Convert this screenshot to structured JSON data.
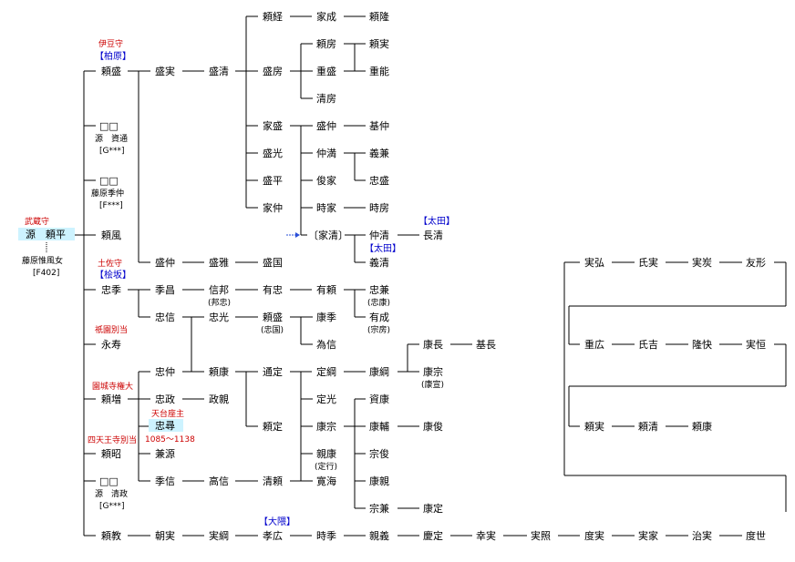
{
  "root": {
    "name": "源　頼平",
    "title": "武蔵守",
    "wife": "藤原惟風女",
    "wife_ref": "[F402]"
  },
  "gen1": [
    {
      "key": "yorimori",
      "name": "頼盛",
      "title": "伊豆守",
      "house": "【柏原】"
    },
    {
      "key": "unk1",
      "name": "□□",
      "sub": "源　資通",
      "ref": "[G***]"
    },
    {
      "key": "unk2",
      "name": "□□",
      "sub": "藤原季仲",
      "ref": "[F***]"
    },
    {
      "key": "yorikaze",
      "name": "頼風"
    },
    {
      "key": "tadasue",
      "name": "忠季",
      "title": "土佐守",
      "house": "【桧坂】"
    },
    {
      "key": "eiju",
      "name": "永寿",
      "title": "祇園別当"
    },
    {
      "key": "raizo",
      "name": "頼増",
      "title": "園城寺権大"
    },
    {
      "key": "raisho",
      "name": "頼昭",
      "title": "四天王寺別当"
    },
    {
      "key": "unk3",
      "name": "□□",
      "sub": "源　清政",
      "ref": "[G***]"
    },
    {
      "key": "yorinori",
      "name": "頼教"
    }
  ],
  "nodes": {
    "morizane": "盛実",
    "morikiyo": "盛清",
    "yoritsune": "頼経",
    "ienari": "家成",
    "yoritaka": "頼隆",
    "yorifusa": "頼房",
    "yorizane": "頼実",
    "morifusa": "盛房",
    "shigemori": "重盛",
    "shigeyoshi": "重能",
    "kiyofusa": "清房",
    "iemori": "家盛",
    "morinaka": "盛仲",
    "motonaka": "基仲",
    "morimitsu": "盛光",
    "nakamitsu": "仲満",
    "yoshikane": "義兼",
    "morihira": "盛平",
    "toshiie": "俊家",
    "tadamori": "忠盛",
    "ienaka": "家仲",
    "tokiie": "時家",
    "tokifusa": "時房",
    "ieki": "〔家清〕",
    "nakakiyo": "仲清",
    "nagakiyo": "長清",
    "yoshikiyo": "義清",
    "morinaka2": "盛仲",
    "morimasa": "盛雅",
    "morikuni": "盛国",
    "suemasa": "季昌",
    "nobukuni": "信邦",
    "aritada": "有忠",
    "ariyori": "有頼",
    "tadakane": "忠兼",
    "tadanobu": "忠信",
    "tadamitsu": "忠光",
    "yorimori2": "頼盛",
    "yasusue": "康季",
    "arinari": "有成",
    "tamenobu": "為信",
    "yasunaga": "康長",
    "motonaga": "基長",
    "tadanaka": "忠仲",
    "yoriyasu": "頼康",
    "michisada": "通定",
    "sadatsuna": "定綱",
    "yasutsuna": "康綱",
    "yasumune": "康宗",
    "sadamitsu": "定光",
    "suketaka": "資康",
    "tadamasa": "忠政",
    "masachika": "政親",
    "yorisada": "頼定",
    "yasumune2": "康宗",
    "yasusuke": "康輔",
    "yasutoshi": "康俊",
    "tadahiro": "忠尋",
    "kanemoto": "兼源",
    "chikayasu": "親康",
    "munetoshi": "宗俊",
    "suenobu": "季信",
    "takanobu": "高信",
    "kiyoyori": "清頼",
    "kankai": "寛海",
    "yasuchika": "康親",
    "munekane": "宗兼",
    "yasusada": "康定",
    "tomozane": "朝実",
    "sanetsuna": "実綱",
    "takahiro": "孝広",
    "tokisue": "時季",
    "chikayoshi": "親義",
    "yoshisada": "慶定",
    "yukizane": "幸実",
    "saneteru": "実照",
    "nobuzane": "度実",
    "saneie": "実家",
    "harumasa": "治実",
    "noriyo": "度世",
    "sanehiro": "実弘",
    "ujizane": "氏実",
    "sanetada": "実炭",
    "tomokata": "友形",
    "shigehiro": "重広",
    "ujiyoshi": "氏吉",
    "takayasu": "隆快",
    "sanetsune": "実恒",
    "yorizane2": "頼実",
    "yorikiyo": "頼清",
    "yoriyasu2": "頼康"
  },
  "notes": {
    "nobukuni": "(邦忠)",
    "yorimori2": "(忠国)",
    "tadakane": "(忠康)",
    "arinari": "(宗房)",
    "yasumune": "(康宣)",
    "chikayasu": "(定行)"
  },
  "titles": {
    "nakakiyo_house": "【太田】",
    "yoshikiyo_house": "【太田】",
    "takahiro_house": "【大隈】",
    "tadahiro_title": "天台座主",
    "tadahiro_years": "1085～1138"
  }
}
